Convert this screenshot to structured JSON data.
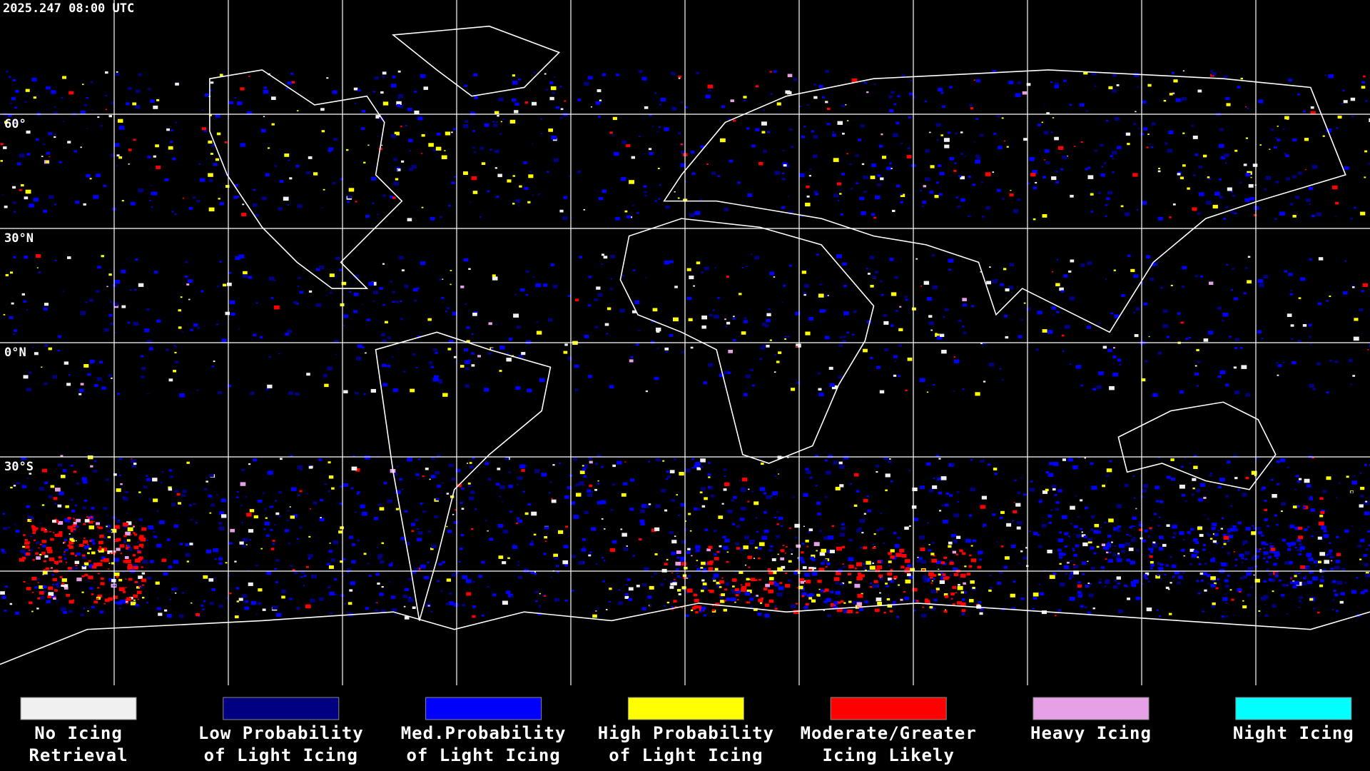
{
  "timestamp": "2025.247 08:00 UTC",
  "latitude_labels": [
    "60°",
    "30°N",
    "0°N",
    "30°S"
  ],
  "legend": [
    {
      "color": "#f0f0f0",
      "lines": [
        "No Icing",
        "Retrieval"
      ]
    },
    {
      "color": "#000080",
      "lines": [
        "Low Probability",
        "of Light Icing"
      ]
    },
    {
      "color": "#0000ff",
      "lines": [
        "Med.Probability",
        "of Light Icing"
      ]
    },
    {
      "color": "#ffff00",
      "lines": [
        "High Probability",
        "of Light Icing"
      ]
    },
    {
      "color": "#ff0000",
      "lines": [
        "Moderate/Greater",
        "Icing Likely"
      ]
    },
    {
      "color": "#e6a0e6",
      "lines": [
        "Heavy Icing"
      ]
    },
    {
      "color": "#00ffff",
      "lines": [
        "Night Icing"
      ]
    }
  ]
}
